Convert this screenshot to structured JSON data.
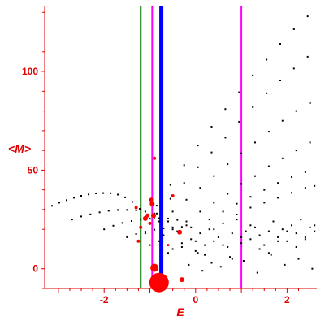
{
  "chart_data": {
    "type": "scatter",
    "title": "",
    "xlabel": "E",
    "ylabel": "<M>",
    "xlim": [
      -3.3,
      2.65
    ],
    "ylim": [
      -10,
      133
    ],
    "x_ticks": [
      {
        "value": -2,
        "label": "-2"
      },
      {
        "value": 0,
        "label": "0"
      },
      {
        "value": 2,
        "label": "2"
      }
    ],
    "y_ticks": [
      {
        "value": 0,
        "label": "0"
      },
      {
        "value": 50,
        "label": "50"
      },
      {
        "value": 100,
        "label": "100"
      }
    ],
    "grid": false,
    "vertical_lines": [
      {
        "x": -1.2,
        "color": "#007000",
        "width": 2
      },
      {
        "x": -0.95,
        "color": "#ff00ff",
        "width": 2
      },
      {
        "x": -0.75,
        "color": "#0000ff",
        "width": 5
      },
      {
        "x": 1.0,
        "color": "#ff00ff",
        "width": 2
      }
    ],
    "colors": {
      "axis": "#e00000",
      "text": "#e00000",
      "points": "#000000",
      "highlight": "#ff0000"
    },
    "series": [
      {
        "color": "#000000",
        "x": [
          -3.3,
          -3.14,
          -2.98,
          -2.82,
          -2.66,
          -2.5,
          -2.34,
          -2.18,
          -2.02,
          -1.86,
          -1.7,
          -1.54,
          -1.38,
          -1.22
        ],
        "y": [
          30.0,
          31.9,
          33.5,
          34.8,
          36.0,
          37.0,
          37.7,
          38.2,
          38.4,
          38.3,
          37.6,
          36.2,
          33.9,
          30.4
        ]
      },
      {
        "color": "#000000",
        "x": [
          -2.7,
          -2.5,
          -2.3,
          -2.1,
          -1.9,
          -1.7,
          -1.5,
          -1.3,
          -1.1,
          -0.9
        ],
        "y": [
          25.0,
          26.5,
          27.6,
          28.6,
          29.4,
          29.8,
          29.8,
          29.6,
          29.0,
          28.0
        ]
      },
      {
        "color": "#000000",
        "x": [
          -2.0,
          -1.8,
          -1.6,
          -1.4,
          -1.2,
          -1.0,
          -0.8,
          -0.6,
          -0.4,
          -0.2
        ],
        "y": [
          20.0,
          21.8,
          23.2,
          24.2,
          25.0,
          25.4,
          25.6,
          25.4,
          24.8,
          24.0
        ]
      },
      {
        "color": "#000000",
        "x": [
          -1.5,
          -1.3,
          -1.1,
          -0.9,
          -0.7,
          -0.5,
          -0.3,
          -0.1
        ],
        "y": [
          16.0,
          17.6,
          18.8,
          19.8,
          20.5,
          21.0,
          21.2,
          21.0
        ]
      },
      {
        "color": "#000000",
        "x": [
          -0.85,
          -0.55,
          -0.25,
          0.05,
          0.35,
          0.65,
          0.95,
          1.25,
          1.55,
          1.85,
          2.15,
          2.45
        ],
        "y": [
          32.0,
          42.5,
          52.5,
          62.5,
          72.0,
          81.0,
          89.5,
          98.0,
          106.0,
          114.0,
          121.5,
          128.0
        ]
      },
      {
        "color": "#000000",
        "x": [
          -0.85,
          -0.55,
          -0.25,
          0.05,
          0.35,
          0.65,
          0.95,
          1.25,
          1.55,
          1.85,
          2.15,
          2.45
        ],
        "y": [
          28.0,
          35.5,
          43.5,
          51.5,
          59.0,
          66.5,
          74.5,
          82.0,
          89.0,
          95.5,
          101.5,
          107.5
        ]
      },
      {
        "color": "#000000",
        "x": [
          -0.8,
          -0.5,
          -0.2,
          0.1,
          0.4,
          0.7,
          1.0,
          1.3,
          1.6,
          1.9,
          2.2,
          2.5
        ],
        "y": [
          24.0,
          29.0,
          35.0,
          41.0,
          47.0,
          53.0,
          58.5,
          64.0,
          69.5,
          75.0,
          80.0,
          84.0
        ]
      },
      {
        "color": "#000000",
        "x": [
          -0.5,
          -0.2,
          0.1,
          0.4,
          0.7,
          1.0,
          1.3,
          1.6,
          1.9,
          2.2,
          2.5
        ],
        "y": [
          20.0,
          24.0,
          29.0,
          33.5,
          38.0,
          43.0,
          47.0,
          52.0,
          56.0,
          60.0,
          64.0
        ]
      },
      {
        "color": "#000000",
        "x": [
          0.3,
          0.6,
          0.9,
          1.2,
          1.5,
          1.8,
          2.1,
          2.4
        ],
        "y": [
          25.0,
          29.0,
          33.0,
          36.5,
          40.0,
          43.5,
          46.5,
          49.0
        ]
      },
      {
        "color": "#000000",
        "x": [
          0.9,
          1.2,
          1.5,
          1.8,
          2.1,
          2.4,
          2.6
        ],
        "y": [
          27.5,
          31.0,
          33.5,
          36.0,
          38.5,
          41.0,
          42.0
        ]
      },
      {
        "color": "#000000",
        "x": [
          -1.1,
          -1.0,
          -0.9,
          -0.8,
          -0.7,
          -0.6,
          -0.5,
          -0.4,
          -0.3,
          -0.2,
          -0.1,
          0.0,
          0.1,
          0.2,
          0.3,
          0.4,
          0.5,
          0.6,
          0.7,
          0.8,
          0.9,
          1.0,
          1.1,
          1.2,
          1.3,
          1.4,
          1.5,
          1.6,
          1.7,
          1.8,
          1.9,
          2.0,
          2.1,
          2.2,
          2.3,
          2.4,
          2.5,
          2.6
        ],
        "y": [
          18,
          12,
          26,
          14,
          17,
          24,
          10,
          19,
          13,
          22,
          15,
          9,
          18,
          12,
          20,
          14,
          16,
          23,
          11,
          18,
          25,
          13,
          19,
          15,
          21,
          17,
          12,
          19,
          24,
          16,
          20,
          14,
          22,
          18,
          25,
          16,
          21,
          19
        ]
      },
      {
        "color": "#000000",
        "x": [
          -0.6,
          -0.3,
          0.0,
          0.2,
          0.4,
          0.6,
          0.8,
          1.0,
          1.2,
          1.4,
          1.6,
          1.8,
          2.0,
          2.2,
          2.4,
          2.6
        ],
        "y": [
          8,
          11,
          14,
          7,
          20,
          12,
          5,
          16,
          22,
          10,
          8,
          14,
          19,
          11,
          15,
          22
        ]
      },
      {
        "color": "#000000",
        "x": [
          0.15,
          0.35,
          0.55,
          0.75,
          1.05,
          1.35,
          1.65,
          1.95,
          2.25,
          2.55,
          -0.15,
          0.05
        ],
        "y": [
          -1,
          3,
          1,
          6,
          4,
          -2,
          7,
          2,
          5,
          0,
          2,
          8
        ]
      }
    ],
    "highlight_points": [
      {
        "x": -0.8,
        "y": -7.0,
        "r": 12
      },
      {
        "x": -0.9,
        "y": 0.5,
        "r": 5
      },
      {
        "x": -0.92,
        "y": 27.0,
        "r": 3
      },
      {
        "x": -0.95,
        "y": 33.0,
        "r": 3
      },
      {
        "x": -0.97,
        "y": 35.0,
        "r": 2.5
      },
      {
        "x": -1.05,
        "y": 27.0,
        "r": 2.5
      },
      {
        "x": -1.1,
        "y": 25.5,
        "r": 3
      },
      {
        "x": -1.2,
        "y": 21.0,
        "r": 2
      },
      {
        "x": -1.3,
        "y": 31.0,
        "r": 2
      },
      {
        "x": -1.25,
        "y": 14.0,
        "r": 2
      },
      {
        "x": -0.5,
        "y": 37.0,
        "r": 2
      },
      {
        "x": -0.9,
        "y": 56.0,
        "r": 2
      },
      {
        "x": -0.35,
        "y": 18.5,
        "r": 3
      },
      {
        "x": -0.3,
        "y": -5.5,
        "r": 3
      },
      {
        "x": -0.6,
        "y": 12.0,
        "r": 1.5
      },
      {
        "x": -1.0,
        "y": 23.0,
        "r": 2
      }
    ]
  }
}
